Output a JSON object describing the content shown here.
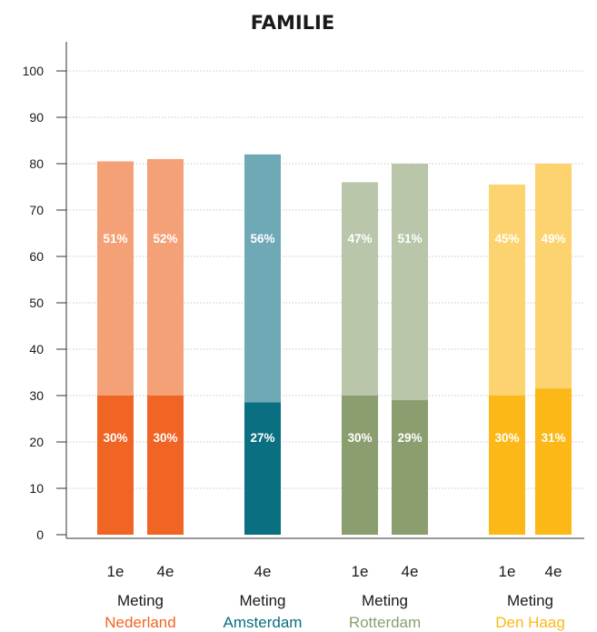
{
  "chart_data": {
    "type": "bar",
    "stacked": true,
    "title": "FAMILIE",
    "ylim": [
      0,
      100
    ],
    "yticks": [
      0,
      10,
      20,
      30,
      40,
      50,
      60,
      70,
      80,
      90,
      100
    ],
    "grid": true,
    "groups": [
      {
        "name": "Nederland",
        "color_dark": "#f06524",
        "color_light": "#f5a177",
        "bars": [
          {
            "measurement": "1e",
            "label": "Meting",
            "bottom_pct": 30,
            "top_pct": 51,
            "bottom_value": 30,
            "total_value": 80.5
          },
          {
            "measurement": "4e",
            "label": "Meting",
            "bottom_pct": 30,
            "top_pct": 52,
            "bottom_value": 30,
            "total_value": 81
          }
        ]
      },
      {
        "name": "Amsterdam",
        "color_dark": "#0a6f80",
        "color_light": "#6ea9b5",
        "bars": [
          {
            "measurement": "4e",
            "label": "Meting",
            "bottom_pct": 27,
            "top_pct": 56,
            "bottom_value": 28.5,
            "total_value": 82
          }
        ]
      },
      {
        "name": "Rotterdam",
        "color_dark": "#8b9e70",
        "color_light": "#b9c6a9",
        "bars": [
          {
            "measurement": "1e",
            "label": "Meting",
            "bottom_pct": 30,
            "top_pct": 47,
            "bottom_value": 30,
            "total_value": 76
          },
          {
            "measurement": "4e",
            "label": "Meting",
            "bottom_pct": 29,
            "top_pct": 51,
            "bottom_value": 29,
            "total_value": 80
          }
        ]
      },
      {
        "name": "Den Haag",
        "color_dark": "#fbb817",
        "color_light": "#fcd36f",
        "bars": [
          {
            "measurement": "1e",
            "label": "Meting",
            "bottom_pct": 30,
            "top_pct": 45,
            "bottom_value": 30,
            "total_value": 75.5
          },
          {
            "measurement": "4e",
            "label": "Meting",
            "bottom_pct": 31,
            "top_pct": 49,
            "bottom_value": 31.5,
            "total_value": 80
          }
        ]
      }
    ]
  }
}
